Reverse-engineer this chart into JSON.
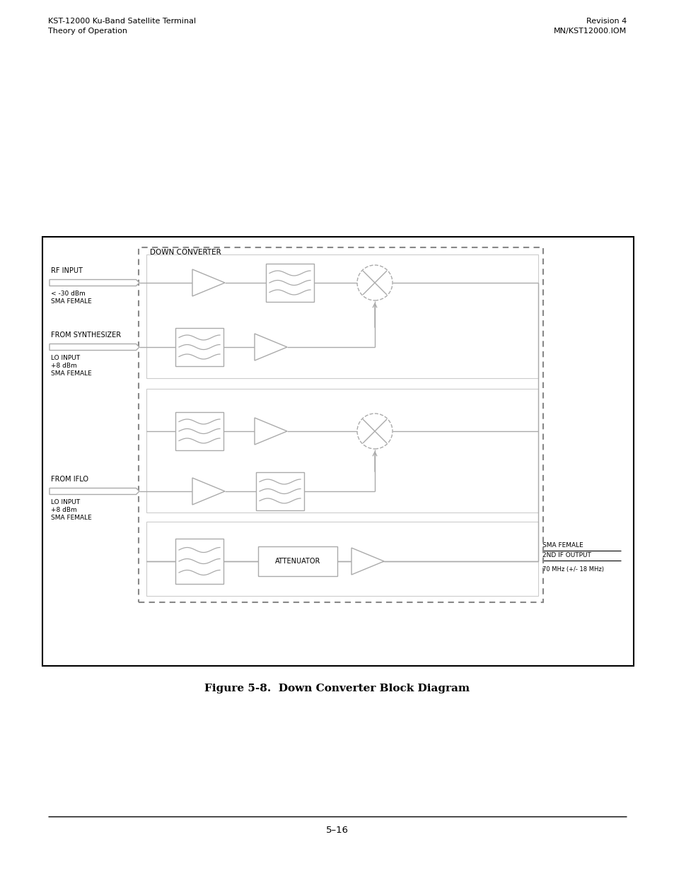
{
  "title": "Figure 5-8.  Down Converter Block Diagram",
  "header_left_line1": "KST-12000 Ku-Band Satellite Terminal",
  "header_left_line2": "Theory of Operation",
  "header_right_line1": "Revision 4",
  "header_right_line2": "MN/KST12000.IOM",
  "down_converter_label": "DOWN CONVERTER",
  "footer_page": "5–16",
  "row1_label1": "RF INPUT",
  "row1_label2": "< -30 dBm",
  "row1_label3": "SMA FEMALE",
  "row2_label1": "FROM SYNTHESIZER",
  "row2_label2": "LO INPUT",
  "row2_label3": "+8 dBm",
  "row2_label4": "SMA FEMALE",
  "row4_label1": "FROM IFLO",
  "row4_label2": "LO INPUT",
  "row4_label3": "+8 dBm",
  "row4_label4": "SMA FEMALE",
  "output_label1": "SMA FEMALE",
  "output_label2": "2ND IF OUTPUT",
  "output_label3": "70 MHz (+/- 18 MHz)",
  "attenuator_label": "ATTENUATOR",
  "gray": "#aaaaaa",
  "dark": "#444444",
  "black": "#000000",
  "white": "#ffffff",
  "light_gray": "#cccccc",
  "dashed_gray": "#888888"
}
